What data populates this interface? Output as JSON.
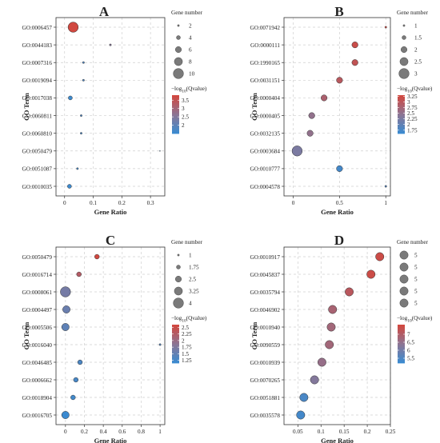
{
  "figure": {
    "legend_size_title": "Gene number",
    "legend_color_title_prefix": "−log",
    "legend_color_title_sub": "10",
    "legend_color_title_suffix": "(Qvalue)"
  },
  "chart_data": [
    {
      "type": "scatter",
      "title": "A",
      "xlabel": "Gene Ratio",
      "ylabel": "GO Term",
      "xlim": [
        -0.03,
        0.35
      ],
      "xticks": [
        0,
        0.1,
        0.2,
        0.3
      ],
      "xtick_labels": [
        "0",
        "0.1",
        "0.2",
        "0.3"
      ],
      "grid": true,
      "categories": [
        "GO:0006457",
        "GO:0044183",
        "GO:0007316",
        "GO:0019094",
        "GO:0017038",
        "GO:0060811",
        "GO:0060810",
        "GO:0050479",
        "GO:0051087",
        "GO:0010035"
      ],
      "x": [
        0.03,
        0.16,
        0.066,
        0.066,
        0.02,
        0.058,
        0.058,
        0.333,
        0.045,
        0.017
      ],
      "gene_number": [
        10,
        2,
        2,
        2,
        4,
        2,
        2,
        1,
        2,
        4
      ],
      "neg_log10_qvalue": [
        3.8,
        2.6,
        1.8,
        1.8,
        1.6,
        1.8,
        1.8,
        1.7,
        1.7,
        1.6
      ],
      "size_legend": {
        "values": [
          2,
          4,
          6,
          8,
          10
        ],
        "labels": [
          "2",
          "4",
          "6",
          "8",
          "10"
        ]
      },
      "color_legend": {
        "min": 1.5,
        "max": 3.8,
        "ticks": [
          2,
          2.5,
          3,
          3.5
        ],
        "tick_labels": [
          "2",
          "2.5",
          "3",
          "3.5"
        ]
      }
    },
    {
      "type": "scatter",
      "title": "B",
      "xlabel": "Gene Ratio",
      "ylabel": "GO Term",
      "xlim": [
        -0.1,
        1.05
      ],
      "xticks": [
        0,
        0.5,
        1
      ],
      "xtick_labels": [
        "0",
        "0.5",
        "1"
      ],
      "grid": true,
      "categories": [
        "GO:0071942",
        "GO:0000111",
        "GO:1990165",
        "GO:0031151",
        "GO:0000404",
        "GO:0000405",
        "GO:0032135",
        "GO:0003684",
        "GO:0010777",
        "GO:0004578"
      ],
      "x": [
        1.0,
        0.667,
        0.667,
        0.5,
        0.333,
        0.2,
        0.182,
        0.042,
        0.5,
        1.0
      ],
      "gene_number": [
        1,
        2,
        2,
        2,
        2,
        2,
        2,
        3,
        2,
        1
      ],
      "neg_log10_qvalue": [
        3.25,
        3.2,
        3.1,
        3.0,
        2.85,
        2.55,
        2.55,
        2.3,
        1.75,
        1.9
      ],
      "size_legend": {
        "values": [
          1,
          1.5,
          2,
          2.5,
          3
        ],
        "labels": [
          "1",
          "1.5",
          "2",
          "2.5",
          "3"
        ]
      },
      "color_legend": {
        "min": 1.6,
        "max": 3.3,
        "ticks": [
          1.75,
          2,
          2.25,
          2.5,
          2.75,
          3,
          3.25
        ],
        "tick_labels": [
          "1.75",
          "2",
          "2.25",
          "2.5",
          "2.75",
          "3",
          "3.25"
        ]
      }
    },
    {
      "type": "scatter",
      "title": "C",
      "xlabel": "Gene Ratio",
      "ylabel": "GO Term",
      "xlim": [
        -0.1,
        1.05
      ],
      "xticks": [
        0,
        0.2,
        0.4,
        0.6,
        0.8,
        1
      ],
      "xtick_labels": [
        "0",
        "0.2",
        "0.4",
        "0.6",
        "0.8",
        "1"
      ],
      "grid": true,
      "categories": [
        "GO:0050479",
        "GO:0016714",
        "GO:0008061",
        "GO:0004497",
        "GO:0005506",
        "GO:0016040",
        "GO:0046485",
        "GO:0006662",
        "GO:0018904",
        "GO:0016705"
      ],
      "x": [
        0.333,
        0.143,
        0.0,
        0.01,
        0.0,
        1.0,
        0.154,
        0.11,
        0.08,
        0.0
      ],
      "gene_number": [
        2,
        2,
        4,
        3,
        3,
        1,
        2,
        2,
        2,
        3
      ],
      "neg_log10_qvalue": [
        2.6,
        2.3,
        1.7,
        1.6,
        1.5,
        1.4,
        1.35,
        1.3,
        1.25,
        1.2
      ],
      "size_legend": {
        "values": [
          1,
          1.75,
          2.5,
          3.25,
          4
        ],
        "labels": [
          "1",
          "1.75",
          "2.5",
          "3.25",
          "4"
        ]
      },
      "color_legend": {
        "min": 1.15,
        "max": 2.6,
        "ticks": [
          1.25,
          1.5,
          1.75,
          2,
          2.25,
          2.5
        ],
        "tick_labels": [
          "1.25",
          "1.5",
          "1.75",
          "2",
          "2.25",
          "2.5"
        ]
      }
    },
    {
      "type": "scatter",
      "title": "D",
      "xlabel": "Gene Ratio",
      "ylabel": "GO Term",
      "xlim": [
        0.02,
        0.25
      ],
      "xticks": [
        0.05,
        0.1,
        0.15,
        0.2,
        0.25
      ],
      "xtick_labels": [
        "0.05",
        "0.1",
        "0.15",
        "0.2",
        "0.25"
      ],
      "grid": true,
      "categories": [
        "GO:0010917",
        "GO:0045837",
        "GO:0035794",
        "GO:0046902",
        "GO:0010940",
        "GO:0090559",
        "GO:0010939",
        "GO:0070265",
        "GO:0051881",
        "GO:0035578"
      ],
      "x": [
        0.227,
        0.208,
        0.161,
        0.125,
        0.122,
        0.118,
        0.102,
        0.086,
        0.063,
        0.056
      ],
      "gene_number": [
        5,
        5,
        5,
        5,
        5,
        5,
        5,
        5,
        5,
        5
      ],
      "neg_log10_qvalue": [
        7.5,
        7.5,
        7.2,
        6.9,
        6.8,
        6.8,
        6.6,
        6.3,
        5.5,
        5.4
      ],
      "size_legend": {
        "values": [
          5,
          5,
          5,
          5,
          5
        ],
        "labels": [
          "5",
          "5",
          "5",
          "5",
          "5"
        ]
      },
      "color_legend": {
        "min": 5.2,
        "max": 7.6,
        "ticks": [
          5.5,
          6,
          6.5,
          7
        ],
        "tick_labels": [
          "5.5",
          "6",
          "6.5",
          "7"
        ]
      }
    }
  ]
}
